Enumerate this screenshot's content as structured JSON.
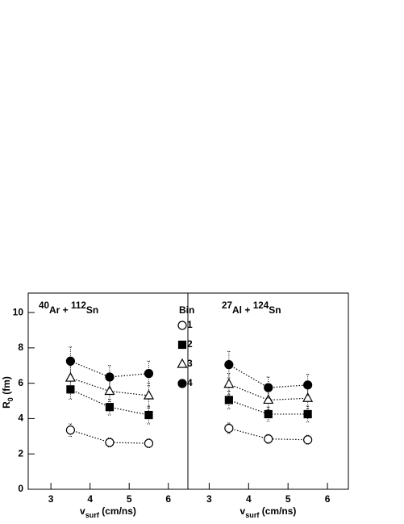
{
  "chart_data": [
    {
      "type": "scatter",
      "title": [
        {
          "text": "40",
          "sup": true
        },
        {
          "text": "Ar + "
        },
        {
          "text": "112",
          "sup": true
        },
        {
          "text": "Sn"
        }
      ],
      "ylabel": [
        {
          "text": "R"
        },
        {
          "text": "0",
          "sub": true
        },
        {
          "text": " (fm)"
        }
      ],
      "xlabel": [
        {
          "text": "v"
        },
        {
          "text": "surf",
          "sub": true
        },
        {
          "text": " (cm/ns)"
        }
      ],
      "legend_title": "Bin",
      "xlim": [
        2.42,
        6.5
      ],
      "xticks": [
        3,
        4,
        5,
        6
      ],
      "ylim": [
        0,
        11.1
      ],
      "yticks": [
        0,
        2,
        4,
        6,
        8,
        10
      ],
      "x": [
        3.5,
        4.5,
        5.5
      ],
      "series": [
        {
          "name": "1",
          "marker": "open-circle",
          "color": "#000000",
          "values": [
            3.35,
            2.65,
            2.6
          ],
          "errors": [
            0.35,
            0.25,
            0.25
          ]
        },
        {
          "name": "2",
          "marker": "filled-square",
          "color": "#000000",
          "values": [
            5.65,
            4.65,
            4.2
          ],
          "errors": [
            0.55,
            0.45,
            0.5
          ]
        },
        {
          "name": "3",
          "marker": "open-triangle",
          "color": "#000000",
          "values": [
            6.3,
            5.55,
            5.3
          ],
          "errors": [
            0.7,
            0.6,
            0.7
          ]
        },
        {
          "name": "4",
          "marker": "filled-circle",
          "color": "#000000",
          "values": [
            7.25,
            6.35,
            6.55
          ],
          "errors": [
            0.8,
            0.65,
            0.7
          ]
        }
      ]
    },
    {
      "type": "scatter",
      "title": [
        {
          "text": "27",
          "sup": true
        },
        {
          "text": "Al + "
        },
        {
          "text": "124",
          "sup": true
        },
        {
          "text": "Sn"
        }
      ],
      "xlabel": [
        {
          "text": "v"
        },
        {
          "text": "surf",
          "sub": true
        },
        {
          "text": " (cm/ns)"
        }
      ],
      "xlim": [
        2.46,
        6.53
      ],
      "xticks": [
        3,
        4,
        5,
        6
      ],
      "ylim": [
        0,
        11.1
      ],
      "x": [
        3.5,
        4.5,
        5.5
      ],
      "series": [
        {
          "color": "#000000",
          "marker": "open-circle",
          "values": [
            3.45,
            2.85,
            2.8
          ],
          "errors": [
            0.3,
            0.25,
            0.25
          ]
        },
        {
          "color": "#000000",
          "marker": "filled-square",
          "values": [
            5.05,
            4.25,
            4.25
          ],
          "errors": [
            0.5,
            0.4,
            0.45
          ]
        },
        {
          "color": "#000000",
          "marker": "open-triangle",
          "values": [
            5.95,
            5.05,
            5.15
          ],
          "errors": [
            0.6,
            0.55,
            0.6
          ]
        },
        {
          "color": "#000000",
          "marker": "filled-circle",
          "values": [
            7.05,
            5.75,
            5.9
          ],
          "errors": [
            0.75,
            0.6,
            0.6
          ]
        }
      ]
    }
  ]
}
